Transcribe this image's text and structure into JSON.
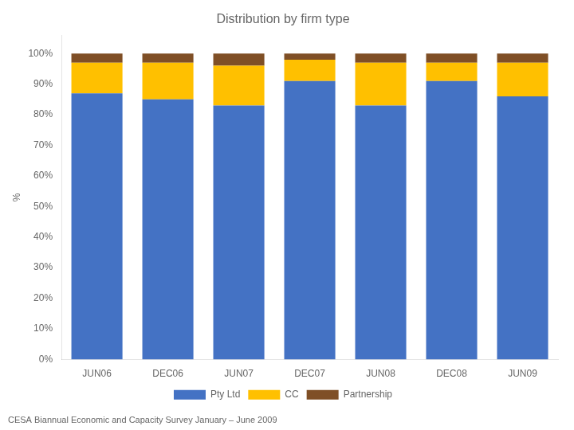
{
  "chart_data": {
    "type": "bar",
    "title": "Distribution by firm type",
    "categories": [
      "JUN06",
      "DEC06",
      "JUN07",
      "DEC07",
      "JUN08",
      "DEC08",
      "JUN09"
    ],
    "series": [
      {
        "name": "Pty Ltd",
        "color": "#4472C4",
        "values": [
          87,
          85,
          83,
          91,
          83,
          91,
          86
        ]
      },
      {
        "name": "CC",
        "color": "#FFC000",
        "values": [
          10,
          12,
          13,
          7,
          14,
          6,
          11
        ]
      },
      {
        "name": "Partnership",
        "color": "#7F4F26",
        "values": [
          3,
          3,
          4,
          2,
          3,
          3,
          3
        ]
      }
    ],
    "stacked": true,
    "ylabel": "%",
    "ylim": [
      0,
      106
    ],
    "yticks": [
      {
        "value": 0,
        "label": "0%"
      },
      {
        "value": 10,
        "label": "10%"
      },
      {
        "value": 20,
        "label": "20%"
      },
      {
        "value": 30,
        "label": "30%"
      },
      {
        "value": 40,
        "label": "40%"
      },
      {
        "value": 50,
        "label": "50%"
      },
      {
        "value": 60,
        "label": "60%"
      },
      {
        "value": 70,
        "label": "70%"
      },
      {
        "value": 80,
        "label": "80%"
      },
      {
        "value": 90,
        "label": "90%"
      },
      {
        "value": 100,
        "label": "100%"
      }
    ],
    "grid": false,
    "legend": "bottom",
    "annotations": [
      "CESA Biannual Economic and Capacity Survey January – June 2009"
    ]
  }
}
